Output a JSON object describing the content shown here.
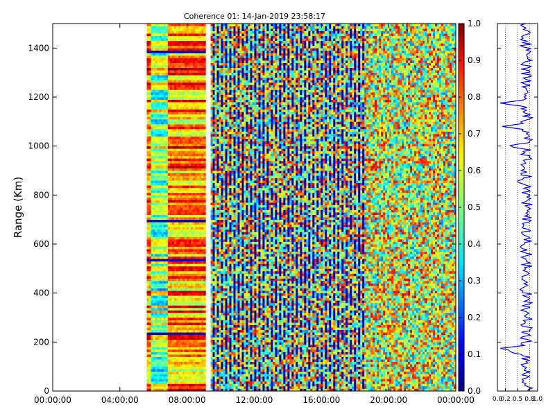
{
  "chart_data": [
    {
      "type": "heatmap",
      "title": "Coherence 01: 14-Jan-2019 23:58:17",
      "xlabel": "",
      "ylabel": "Range (Km)",
      "x_range": [
        "00:00:00",
        "24:00:00"
      ],
      "x_tick_labels": [
        "00:00:00",
        "04:00:00",
        "08:00:00",
        "12:00:00",
        "16:00:00",
        "20:00:00",
        "00:00:00"
      ],
      "x_tick_hours": [
        0,
        4,
        8,
        12,
        16,
        20,
        24
      ],
      "ylim": [
        0,
        1500
      ],
      "y_ticks": [
        0,
        200,
        400,
        600,
        800,
        1000,
        1200,
        1400
      ],
      "colormap": "jet",
      "color_range": [
        0.0,
        1.0
      ],
      "colorbar_ticks": [
        0.0,
        0.1,
        0.2,
        0.3,
        0.4,
        0.5,
        0.6,
        0.7,
        0.8,
        0.9,
        1.0
      ],
      "data_segments": [
        {
          "start_hour": 5.6,
          "end_hour": 9.1,
          "mean_coherence": 0.62,
          "pattern": "horizontal-bands"
        },
        {
          "start_hour": 9.4,
          "end_hour": 24.0,
          "mean_coherence": 0.55,
          "pattern": "striped-noisy"
        }
      ],
      "strong_low_bands_km": [
        1375,
        688,
        525,
        230
      ],
      "grid": false
    },
    {
      "type": "line",
      "title": "",
      "xlabel": "",
      "ylabel": "",
      "xlim": [
        0.0,
        1.0
      ],
      "x_tick_labels": [
        "0.0",
        "0.2",
        "0.5",
        "0.8",
        "1.0"
      ],
      "x_ticks": [
        0.0,
        0.2,
        0.5,
        0.8,
        1.0
      ],
      "ylim": [
        0,
        1500
      ],
      "reference_lines_x": [
        0.2,
        0.5,
        0.8
      ],
      "typical_value": 0.72,
      "dips": [
        {
          "range_km": 1175,
          "value": 0.02
        },
        {
          "range_km": 1080,
          "value": 0.12
        },
        {
          "range_km": 1000,
          "value": 0.25
        },
        {
          "range_km": 855,
          "value": 0.45
        },
        {
          "range_km": 590,
          "value": 0.55
        },
        {
          "range_km": 415,
          "value": 0.55
        },
        {
          "range_km": 173,
          "value": 0.02
        },
        {
          "range_km": 160,
          "value": 0.25
        }
      ],
      "line_color": "#0000ff"
    }
  ]
}
